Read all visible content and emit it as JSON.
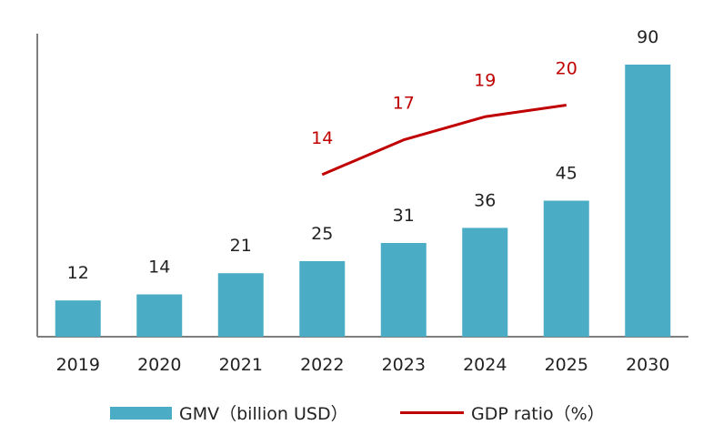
{
  "chart_data": {
    "type": "bar+line",
    "categories": [
      "2019",
      "2020",
      "2021",
      "2022",
      "2023",
      "2024",
      "2025",
      "2030"
    ],
    "series": [
      {
        "name": "GMV（billion USD）",
        "type": "bar",
        "axis": "left",
        "values": [
          12,
          14,
          21,
          25,
          31,
          36,
          45,
          90
        ],
        "color": "#4BACC6"
      },
      {
        "name": "GDP ratio（%）",
        "type": "line",
        "axis": "right",
        "values": [
          null,
          null,
          null,
          14,
          17,
          19,
          20,
          null
        ],
        "color": "#C00000"
      }
    ],
    "ylim": [
      0,
      90
    ],
    "ylim_right": [
      0,
      23.5
    ],
    "grid": false,
    "legend_position": "bottom",
    "axis_color": "#7f7f7f",
    "label_color": "#222222"
  },
  "legend": {
    "gmv_label": "GMV（billion USD）",
    "gdp_label": "GDP ratio（%）"
  }
}
